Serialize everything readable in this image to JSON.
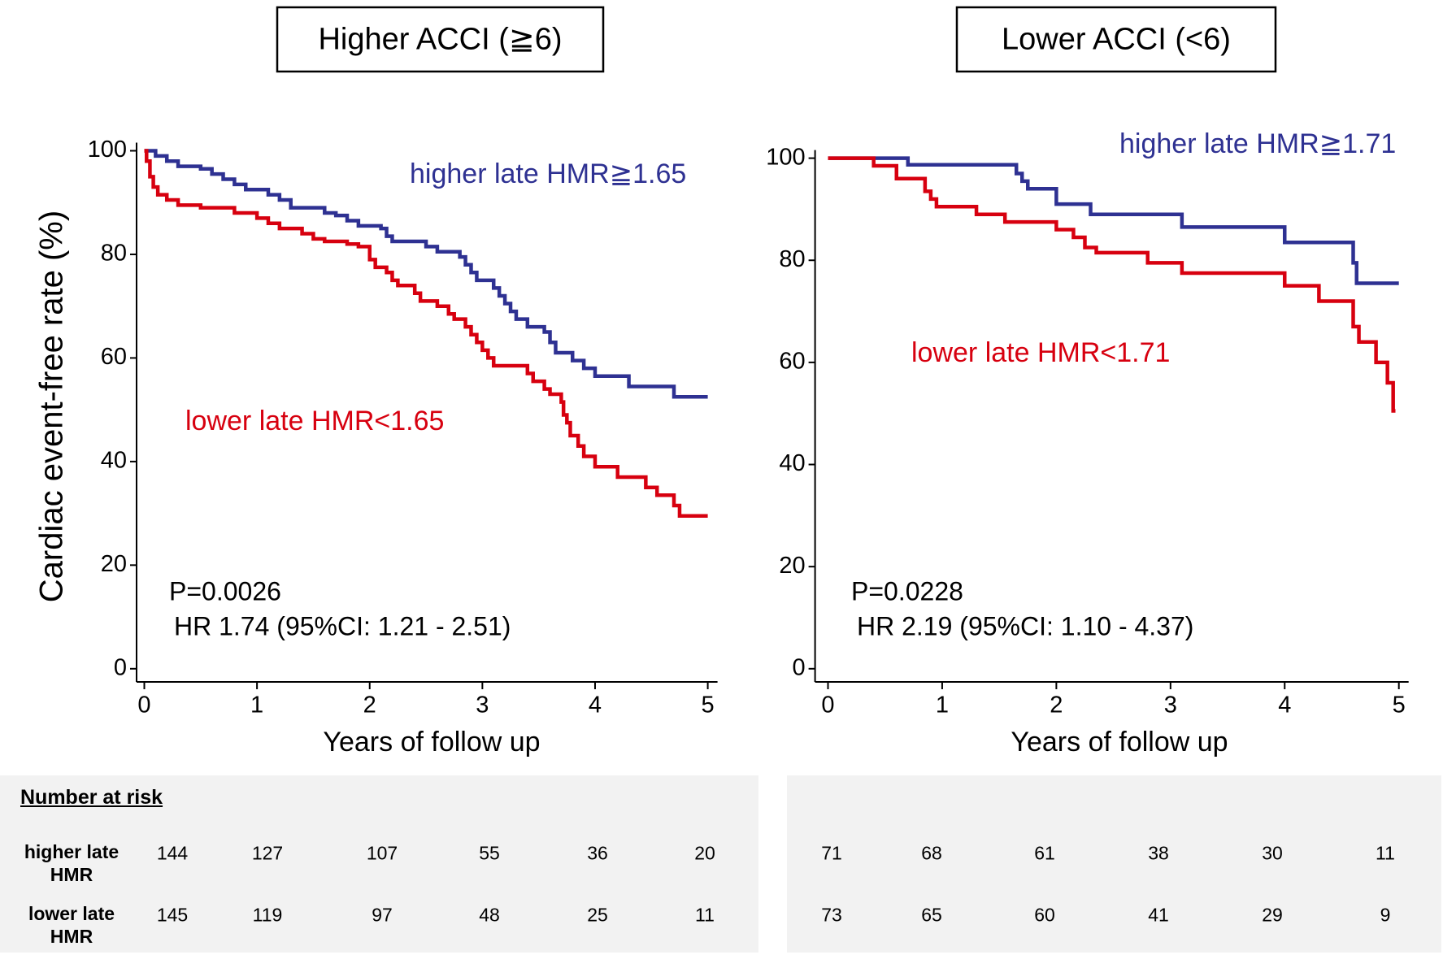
{
  "chart_data": [
    {
      "type": "line",
      "step": "post",
      "title": "Higher ACCI (≧6)",
      "xlabel": "Years of follow up",
      "ylabel": "Cardiac event-free rate (%)",
      "xlim": [
        0,
        5
      ],
      "ylim": [
        0,
        100
      ],
      "xticks": [
        0,
        1,
        2,
        3,
        4,
        5
      ],
      "yticks": [
        0,
        20,
        40,
        60,
        80,
        100
      ],
      "annotations": [
        "P=0.0026",
        "HR 1.74 (95%CI: 1.21 - 2.51)"
      ],
      "series": [
        {
          "name": "higher late HMR≧1.65",
          "color": "#2e3192",
          "x": [
            0,
            0.1,
            0.2,
            0.3,
            0.5,
            0.6,
            0.7,
            0.8,
            0.9,
            1.1,
            1.2,
            1.3,
            1.6,
            1.7,
            1.8,
            1.9,
            2.1,
            2.15,
            2.2,
            2.5,
            2.6,
            2.8,
            2.85,
            2.9,
            2.95,
            3.1,
            3.15,
            3.2,
            3.25,
            3.3,
            3.4,
            3.55,
            3.6,
            3.65,
            3.8,
            3.9,
            4.0,
            4.3,
            4.7,
            5.0
          ],
          "values": [
            100,
            99,
            98,
            97,
            96.5,
            95.5,
            94.5,
            93.5,
            92.5,
            91.5,
            90.5,
            89,
            88,
            87.5,
            86.5,
            85.5,
            85,
            83.5,
            82.5,
            81.5,
            80.5,
            79.5,
            78,
            76.5,
            75,
            73.5,
            72,
            70.5,
            69,
            67.5,
            66,
            65,
            63,
            61,
            59.5,
            58,
            56.5,
            54.5,
            52.5,
            52.5
          ]
        },
        {
          "name": "lower late HMR<1.65",
          "color": "#d7000f",
          "x": [
            0,
            0.02,
            0.05,
            0.08,
            0.12,
            0.2,
            0.3,
            0.5,
            0.8,
            1.0,
            1.1,
            1.2,
            1.4,
            1.5,
            1.6,
            1.8,
            1.9,
            2.0,
            2.05,
            2.15,
            2.2,
            2.25,
            2.4,
            2.45,
            2.6,
            2.7,
            2.75,
            2.85,
            2.9,
            2.95,
            3.0,
            3.05,
            3.1,
            3.4,
            3.45,
            3.55,
            3.6,
            3.7,
            3.72,
            3.75,
            3.78,
            3.85,
            3.9,
            4.0,
            4.2,
            4.45,
            4.55,
            4.7,
            4.75,
            5.0
          ],
          "values": [
            100,
            98,
            95,
            93,
            91.5,
            90.5,
            89.5,
            89,
            88,
            87,
            86,
            85,
            84,
            83,
            82.5,
            82,
            81.5,
            79,
            77.5,
            76.5,
            75,
            74,
            72.5,
            71,
            70,
            68.5,
            67.5,
            66,
            64.5,
            63,
            61.5,
            60,
            58.5,
            57,
            55.5,
            54,
            53,
            51.5,
            49,
            47.5,
            45,
            43,
            41,
            39,
            37,
            35,
            33.5,
            31.5,
            29.5,
            29.5
          ]
        }
      ]
    },
    {
      "type": "line",
      "step": "post",
      "title": "Lower ACCI (<6)",
      "xlabel": "Years of follow up",
      "xlim": [
        0,
        5
      ],
      "ylim": [
        0,
        100
      ],
      "xticks": [
        0,
        1,
        2,
        3,
        4,
        5
      ],
      "yticks": [
        0,
        20,
        40,
        60,
        80,
        100
      ],
      "annotations": [
        "P=0.0228",
        "HR 2.19 (95%CI: 1.10 - 4.37)"
      ],
      "series": [
        {
          "name": "higher late HMR≧1.71",
          "color": "#2e3192",
          "x": [
            0,
            0.7,
            1.65,
            1.7,
            1.75,
            2.0,
            2.3,
            3.1,
            4.0,
            4.6,
            4.63,
            5.0
          ],
          "values": [
            100,
            98.7,
            97,
            95.5,
            94,
            91,
            89,
            86.5,
            83.5,
            79.5,
            75.5,
            75.5
          ]
        },
        {
          "name": "lower late HMR<1.71",
          "color": "#d7000f",
          "x": [
            0,
            0.4,
            0.6,
            0.85,
            0.9,
            0.95,
            1.3,
            1.55,
            2.0,
            2.15,
            2.25,
            2.35,
            2.8,
            3.1,
            4.0,
            4.3,
            4.6,
            4.65,
            4.8,
            4.9,
            4.95,
            4.97
          ],
          "values": [
            100,
            98.5,
            96,
            93.5,
            92,
            90.5,
            89,
            87.5,
            86,
            84.5,
            82.5,
            81.5,
            79.5,
            77.5,
            75,
            72,
            67,
            64,
            60,
            56,
            50.5,
            50.5
          ]
        }
      ]
    }
  ],
  "risk_table": {
    "title": "Number at risk",
    "row_labels": [
      "higher late HMR",
      "lower late HMR"
    ],
    "left": [
      [
        144,
        127,
        107,
        55,
        36,
        20
      ],
      [
        145,
        119,
        97,
        48,
        25,
        11
      ]
    ],
    "right": [
      [
        71,
        68,
        61,
        38,
        30,
        11
      ],
      [
        73,
        65,
        60,
        41,
        29,
        9
      ]
    ]
  }
}
